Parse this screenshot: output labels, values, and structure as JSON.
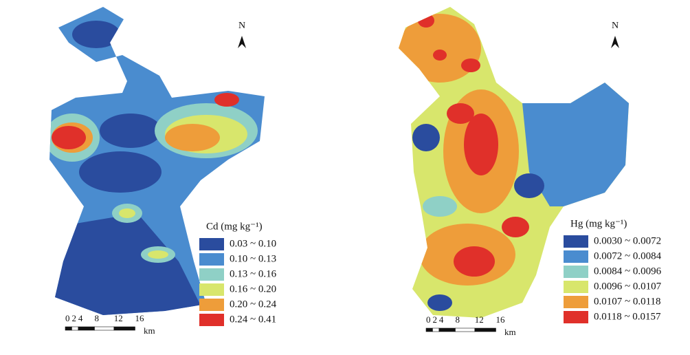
{
  "maps": [
    {
      "north": "N",
      "legend": {
        "title": "Cd (mg kg⁻¹)",
        "items": [
          {
            "label": "0.03 ~ 0.10",
            "color": "#2a4c9e"
          },
          {
            "label": "0.10 ~ 0.13",
            "color": "#4a8ccf"
          },
          {
            "label": "0.13 ~ 0.16",
            "color": "#8fd0c6"
          },
          {
            "label": "0.16 ~ 0.20",
            "color": "#d8e66c"
          },
          {
            "label": "0.20 ~ 0.24",
            "color": "#ee9d3a"
          },
          {
            "label": "0.24 ~ 0.41",
            "color": "#e0302a"
          }
        ]
      },
      "scale": {
        "ticks": [
          "0",
          "2",
          "4",
          "8",
          "12",
          "16"
        ],
        "unit": "km"
      }
    },
    {
      "north": "N",
      "legend": {
        "title": "Hg (mg kg⁻¹)",
        "items": [
          {
            "label": "0.0030 ~ 0.0072",
            "color": "#2a4c9e"
          },
          {
            "label": "0.0072 ~ 0.0084",
            "color": "#4a8ccf"
          },
          {
            "label": "0.0084 ~ 0.0096",
            "color": "#8fd0c6"
          },
          {
            "label": "0.0096 ~ 0.0107",
            "color": "#d8e66c"
          },
          {
            "label": "0.0107 ~ 0.0118",
            "color": "#ee9d3a"
          },
          {
            "label": "0.0118 ~ 0.0157",
            "color": "#e0302a"
          }
        ]
      },
      "scale": {
        "ticks": [
          "0",
          "2",
          "4",
          "8",
          "12",
          "16"
        ],
        "unit": "km"
      }
    }
  ]
}
